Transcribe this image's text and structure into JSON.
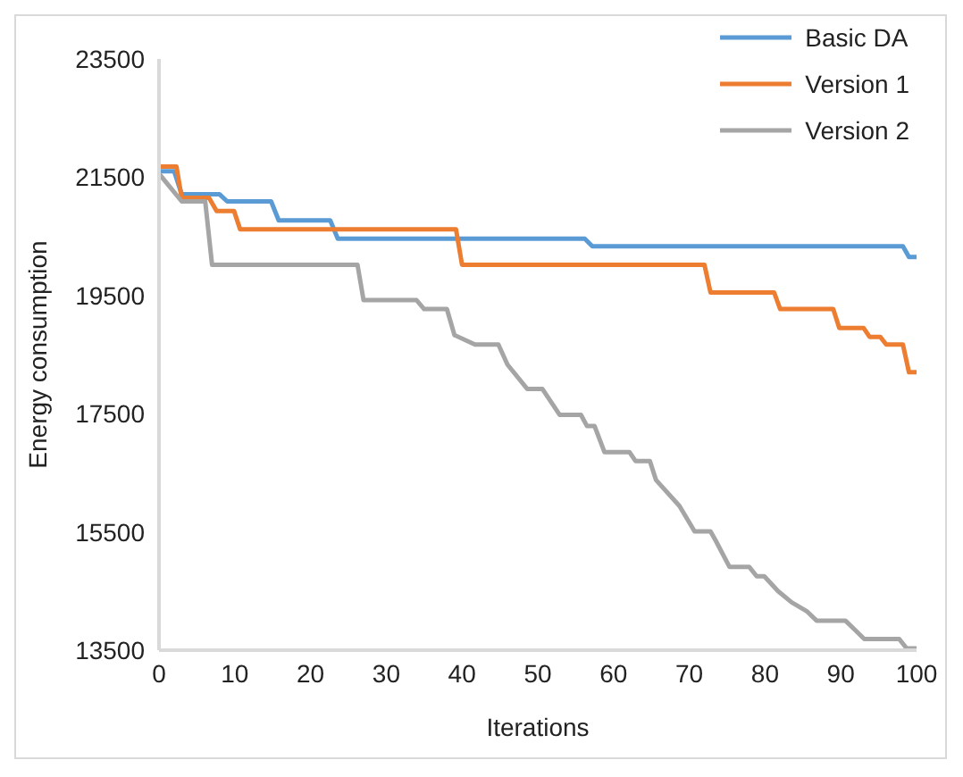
{
  "chart_data": {
    "type": "line",
    "xlabel": "Iterations",
    "ylabel": "Energy consumption",
    "xlim": [
      0,
      100
    ],
    "xticks": [
      0,
      10,
      20,
      30,
      40,
      50,
      60,
      70,
      80,
      90,
      100
    ],
    "ylim": [
      13500,
      23500
    ],
    "yticks": [
      13500,
      15500,
      17500,
      19500,
      21500,
      23500
    ],
    "grid": false,
    "legend": "top right",
    "marker": "none",
    "line_style": "solid",
    "series": [
      {
        "name": "Basic DA",
        "color": "#5b9bd5",
        "x": [
          0,
          2,
          3,
          8,
          9,
          14.8,
          15.8,
          22.6,
          23.6,
          56.2,
          57.2,
          98.2,
          99,
          100
        ],
        "values": [
          21600,
          21600,
          21210,
          21210,
          21090,
          21090,
          20770,
          20770,
          20460,
          20460,
          20330,
          20330,
          20150,
          20150
        ]
      },
      {
        "name": "Version 1",
        "color": "#ed7d31",
        "x": [
          0,
          2.3,
          3,
          6.6,
          7.6,
          9.9,
          10.7,
          39.2,
          40,
          72,
          72.8,
          81.2,
          82,
          89,
          89.8,
          93,
          93.8,
          95.2,
          96,
          98.2,
          99,
          100
        ],
        "values": [
          21680,
          21680,
          21150,
          21150,
          20930,
          20930,
          20620,
          20620,
          20020,
          20020,
          19550,
          19550,
          19270,
          19270,
          18950,
          18950,
          18800,
          18800,
          18670,
          18670,
          18200,
          18200
        ]
      },
      {
        "name": "Version 2",
        "color": "#a5a5a5",
        "x": [
          0,
          3,
          6.1,
          7,
          26.2,
          27,
          34,
          35,
          38,
          39,
          41.7,
          44.8,
          46,
          48.6,
          50.6,
          52.9,
          55.7,
          56.5,
          57.5,
          58.8,
          62.1,
          62.9,
          64.8,
          65.6,
          68.7,
          70.7,
          72.8,
          73.5,
          75.3,
          77.9,
          78.9,
          79.9,
          81.7,
          83.5,
          85.5,
          86.8,
          90.6,
          91.9,
          93.1,
          97.7,
          98.7,
          100
        ],
        "values": [
          21560,
          21090,
          21090,
          20020,
          20020,
          19420,
          19420,
          19270,
          19270,
          18830,
          18670,
          18670,
          18330,
          17920,
          17920,
          17480,
          17480,
          17290,
          17290,
          16850,
          16850,
          16700,
          16700,
          16380,
          15940,
          15510,
          15510,
          15350,
          14910,
          14910,
          14750,
          14750,
          14500,
          14310,
          14160,
          14000,
          14000,
          13840,
          13690,
          13690,
          13530,
          13530
        ]
      }
    ]
  }
}
